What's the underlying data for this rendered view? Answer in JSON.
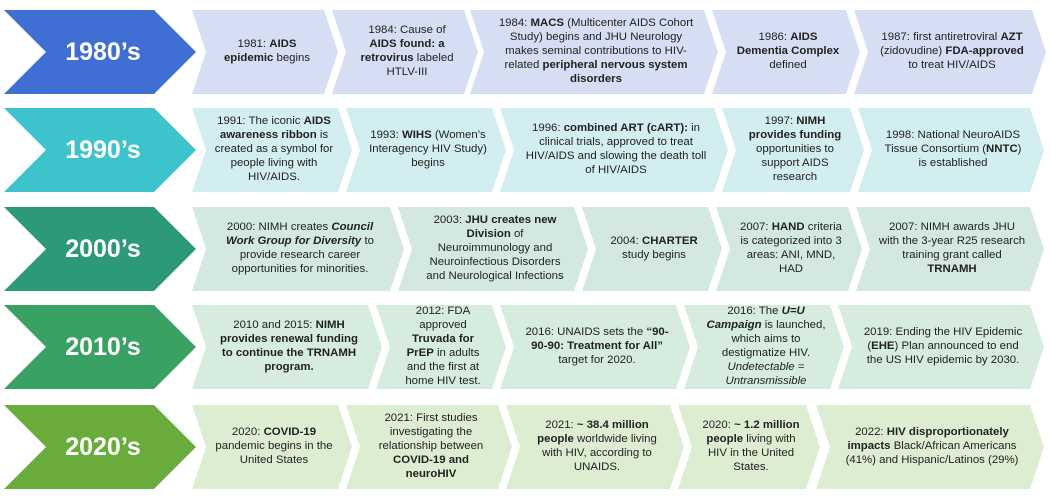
{
  "rows": [
    {
      "decade": "1980’s",
      "arrow_color": "#3f6fd4",
      "box_color": "#d5def3",
      "events": [
        [
          {
            "t": "1981: "
          },
          {
            "t": "AIDS epidemic",
            "b": true
          },
          {
            "t": " begins"
          }
        ],
        [
          {
            "t": "1984: Cause of "
          },
          {
            "t": "AIDS found: a retrovirus",
            "b": true
          },
          {
            "t": " labeled HTLV-III"
          }
        ],
        [
          {
            "t": "1984: "
          },
          {
            "t": "MACS",
            "b": true
          },
          {
            "t": " (Multicenter AIDS Cohort Study) begins and JHU Neurology makes seminal contributions to HIV-related "
          },
          {
            "t": "peripheral nervous system disorders",
            "b": true
          }
        ],
        [
          {
            "t": "1986: "
          },
          {
            "t": "AIDS Dementia Complex",
            "b": true
          },
          {
            "t": " defined"
          }
        ],
        [
          {
            "t": "1987: first antiretroviral "
          },
          {
            "t": "AZT",
            "b": true
          },
          {
            "t": " (zidovudine) "
          },
          {
            "t": "FDA-approved",
            "b": true
          },
          {
            "t": " to treat HIV/AIDS"
          }
        ]
      ]
    },
    {
      "decade": "1990’s",
      "arrow_color": "#3cc3cc",
      "box_color": "#d3eef0",
      "events": [
        [
          {
            "t": "1991: The iconic "
          },
          {
            "t": "AIDS awareness ribbon",
            "b": true
          },
          {
            "t": " is created as a symbol for people living with HIV/AIDS."
          }
        ],
        [
          {
            "t": "1993: "
          },
          {
            "t": "WIHS",
            "b": true
          },
          {
            "t": " (Women’s Interagency HIV Study) begins"
          }
        ],
        [
          {
            "t": "1996: "
          },
          {
            "t": "combined ART (cART):",
            "b": true
          },
          {
            "t": " in clinical trials, approved to treat HIV/AIDS and slowing the death toll of HIV/AIDS"
          }
        ],
        [
          {
            "t": "1997: "
          },
          {
            "t": "NIMH provides funding",
            "b": true
          },
          {
            "t": " opportunities to support AIDS research"
          }
        ],
        [
          {
            "t": "1998: National NeuroAIDS Tissue Consortium ("
          },
          {
            "t": "NNTC",
            "b": true
          },
          {
            "t": ") is established"
          }
        ]
      ]
    },
    {
      "decade": "2000’s",
      "arrow_color": "#2c9a78",
      "box_color": "#d3e9df",
      "events": [
        [
          {
            "t": "2000: NIMH creates "
          },
          {
            "t": "Council Work Group for Diversity",
            "b": true,
            "i": true
          },
          {
            "t": " to provide research career opportunities for minorities."
          }
        ],
        [
          {
            "t": "2003: "
          },
          {
            "t": "JHU creates new Division",
            "b": true
          },
          {
            "t": " of Neuroimmunology and Neuroinfectious Disorders and Neurological Infections"
          }
        ],
        [
          {
            "t": "2004: "
          },
          {
            "t": "CHARTER",
            "b": true
          },
          {
            "t": " study begins"
          }
        ],
        [
          {
            "t": "2007: "
          },
          {
            "t": "HAND",
            "b": true
          },
          {
            "t": " criteria is categorized into 3 areas: ANI, MND, HAD"
          }
        ],
        [
          {
            "t": "2007: NIMH awards JHU with the 3-year R25 research training grant called "
          },
          {
            "t": "TRNAMH",
            "b": true
          }
        ]
      ]
    },
    {
      "decade": "2010’s",
      "arrow_color": "#3aa165",
      "box_color": "#d5ecde",
      "events": [
        [
          {
            "t": "2010 and 2015: "
          },
          {
            "t": "NIMH provides renewal funding to continue the TRNAMH program.",
            "b": true
          }
        ],
        [
          {
            "t": "2012: FDA approved "
          },
          {
            "t": "Truvada for PrEP",
            "b": true
          },
          {
            "t": " in adults and the first at home HIV test."
          }
        ],
        [
          {
            "t": "2016: UNAIDS sets the "
          },
          {
            "t": "“90-90-90: Treatment for All”",
            "b": true
          },
          {
            "t": " target for 2020."
          }
        ],
        [
          {
            "t": "2016: The "
          },
          {
            "t": "U=U Campaign",
            "b": true,
            "i": true
          },
          {
            "t": " is launched, which aims to destigmatize HIV. "
          },
          {
            "t": "Undetectable = Untransmissible",
            "i": true
          }
        ],
        [
          {
            "t": "2019: Ending the HIV Epidemic ("
          },
          {
            "t": "EHE",
            "b": true
          },
          {
            "t": ") Plan announced to end the US HIV epidemic by 2030."
          }
        ]
      ]
    },
    {
      "decade": "2020’s",
      "arrow_color": "#6aac3c",
      "box_color": "#ddedd2",
      "events": [
        [
          {
            "t": "2020: "
          },
          {
            "t": "COVID-19",
            "b": true
          },
          {
            "t": " pandemic begins in the United States"
          }
        ],
        [
          {
            "t": "2021: First studies investigating the relationship between "
          },
          {
            "t": "COVID-19 and neuroHIV",
            "b": true
          }
        ],
        [
          {
            "t": "2021: "
          },
          {
            "t": "~ 38.4 million people",
            "b": true
          },
          {
            "t": " worldwide living with HIV, according to UNAIDS."
          }
        ],
        [
          {
            "t": "2020: "
          },
          {
            "t": "~ 1.2 million people",
            "b": true
          },
          {
            "t": " living with HIV in the United States."
          }
        ],
        [
          {
            "t": "2022: "
          },
          {
            "t": "HIV disproportionately impacts",
            "b": true
          },
          {
            "t": " Black/African Americans (41%) and Hispanic/Latinos (29%)"
          }
        ]
      ]
    }
  ]
}
